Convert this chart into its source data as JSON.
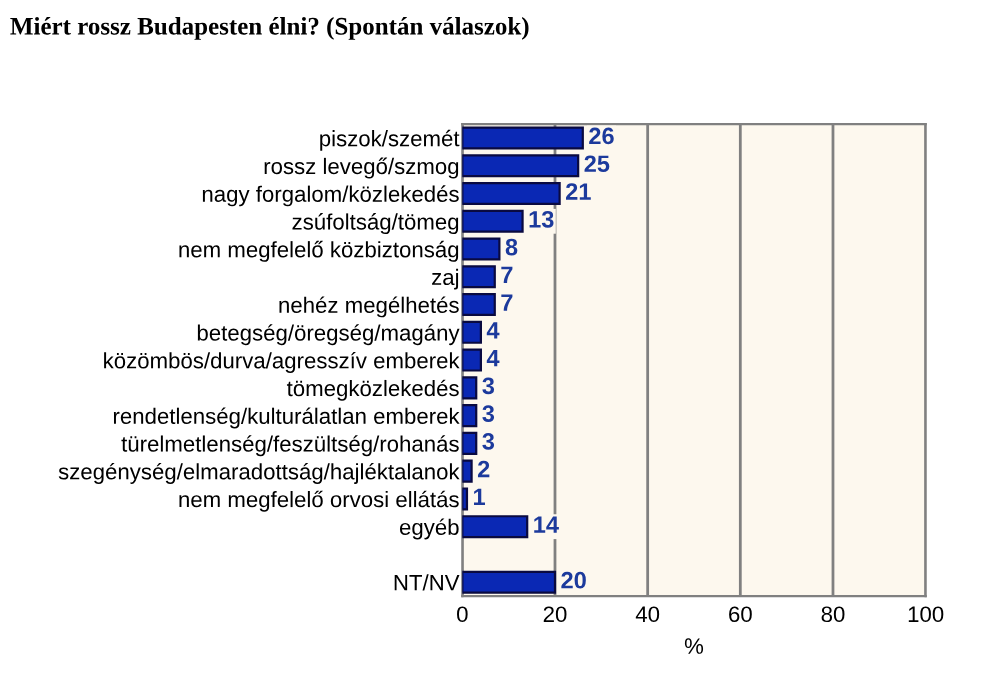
{
  "chart_data": {
    "type": "bar",
    "orientation": "horizontal",
    "title": "Miért rossz Budapesten élni? (Spontán válaszok)",
    "xlabel": "%",
    "categories": [
      "piszok/szemét",
      "rossz levegő/szmog",
      "nagy forgalom/közlekedés",
      "zsúfoltság/tömeg",
      "nem megfelelő közbiztonság",
      "zaj",
      "nehéz megélhetés",
      "betegség/öregség/magány",
      "közömbös/durva/agresszív emberek",
      "tömegközlekedés",
      "rendetlenség/kulturálatlan emberek",
      "türelmetlenség/feszültség/rohanás",
      "szegénység/elmaradottság/hajléktalanok",
      "nem megfelelő orvosi ellátás",
      "egyéb",
      null,
      "NT/NV"
    ],
    "values": [
      26,
      25,
      21,
      13,
      8,
      7,
      7,
      4,
      4,
      3,
      3,
      3,
      2,
      1,
      14,
      null,
      20
    ],
    "color": "#0a28b4",
    "data_labels": true,
    "xlim": [
      0,
      100
    ],
    "xticks": [
      0,
      20,
      40,
      60,
      80,
      100
    ],
    "grid": "x"
  }
}
